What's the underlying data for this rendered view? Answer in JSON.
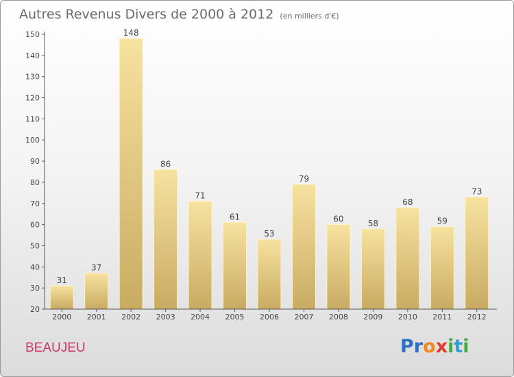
{
  "title": "Autres Revenus Divers de 2000 à 2012",
  "unit": "(en milliers d'€)",
  "commune": "BEAUJEU",
  "logo": {
    "text": "Proxiti",
    "letters": [
      {
        "ch": "P",
        "color": "#2f6fc4"
      },
      {
        "ch": "r",
        "color": "#2f6fc4"
      },
      {
        "ch": "o",
        "color": "#f08a1c"
      },
      {
        "ch": "x",
        "color": "#e03a2a"
      },
      {
        "ch": "i",
        "color": "#3bae3b"
      },
      {
        "ch": "t",
        "color": "#2f9fd8"
      },
      {
        "ch": "i",
        "color": "#3bae3b"
      }
    ]
  },
  "chart_data": {
    "type": "bar",
    "categories": [
      "2000",
      "2001",
      "2002",
      "2003",
      "2004",
      "2005",
      "2006",
      "2007",
      "2008",
      "2009",
      "2010",
      "2011",
      "2012"
    ],
    "values": [
      31,
      37,
      148,
      86,
      71,
      61,
      53,
      79,
      60,
      58,
      68,
      59,
      73
    ],
    "ylim": [
      20,
      150
    ],
    "yticks": [
      20,
      30,
      40,
      50,
      60,
      70,
      80,
      90,
      100,
      110,
      120,
      130,
      140,
      150
    ],
    "grid": false,
    "data_labels": true,
    "colors": {
      "bar_light": "#f7e2a0",
      "bar_dark": "#c9ab62",
      "axis": "#555555",
      "text": "#444444"
    }
  }
}
